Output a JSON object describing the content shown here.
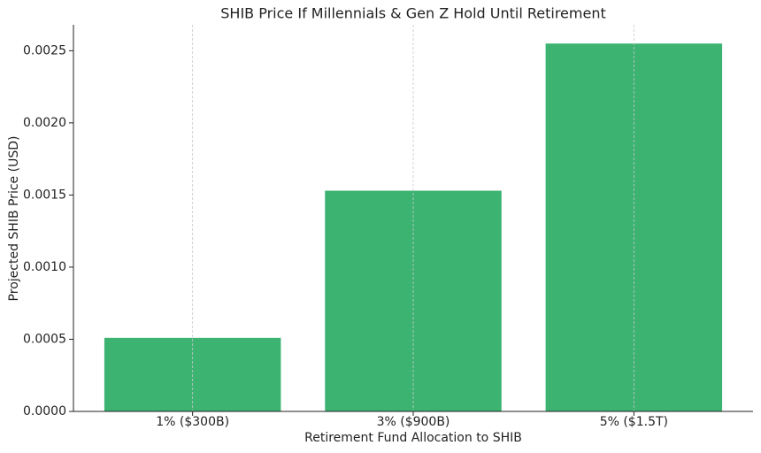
{
  "chart_data": {
    "type": "bar",
    "title": "SHIB Price If Millennials & Gen Z Hold Until Retirement",
    "x_label": "Retirement Fund Allocation to SHIB",
    "y_label": "Projected SHIB Price (USD)",
    "categories": [
      "1% ($300B)",
      "3% ($900B)",
      "5% ($1.5T)"
    ],
    "values": [
      0.00051,
      0.00153,
      0.00255
    ],
    "color": "#3cb371",
    "ylim": [
      0,
      0.00268
    ],
    "yticks": [
      {
        "value": 0,
        "label": "0.0000"
      },
      0.0005,
      {
        "value": 0.001,
        "label": "0.0010"
      },
      0.0015,
      {
        "value": 0.002,
        "label": "0.0020"
      },
      0.0025
    ],
    "grid": "x"
  }
}
